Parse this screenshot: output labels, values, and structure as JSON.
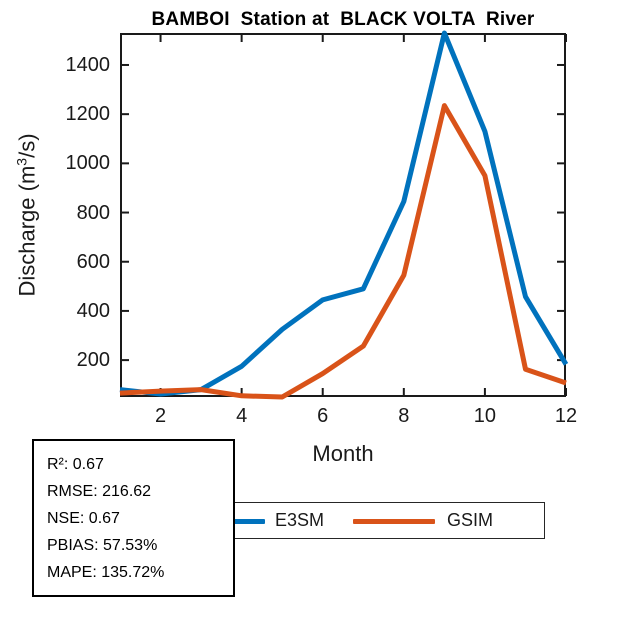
{
  "figure": {
    "title": "BAMBOI  Station at  BLACK VOLTA  River"
  },
  "axes": {
    "xlabel": "Month",
    "ylabel_pre": "Discharge (m",
    "ylabel_sup": "3",
    "ylabel_post": "/s)"
  },
  "chart_data": {
    "type": "line",
    "title": "BAMBOI  Station at  BLACK VOLTA  River",
    "xlabel": "Month",
    "ylabel": "Discharge (m³/s)",
    "x": [
      1,
      2,
      3,
      4,
      5,
      6,
      7,
      8,
      9,
      10,
      11,
      12
    ],
    "series": [
      {
        "name": "E3SM",
        "color": "#0072BD",
        "values": [
          80,
          62,
          80,
          175,
          325,
          445,
          490,
          845,
          1530,
          1130,
          458,
          183
        ]
      },
      {
        "name": "GSIM",
        "color": "#D95319",
        "values": [
          66,
          74,
          80,
          55,
          50,
          145,
          257,
          545,
          1235,
          950,
          163,
          107
        ]
      }
    ],
    "xlim": [
      1,
      12
    ],
    "ylim": [
      50,
      1530
    ],
    "x_ticks": [
      2,
      4,
      6,
      8,
      10,
      12
    ],
    "y_ticks": [
      200,
      400,
      600,
      800,
      1000,
      1200,
      1400
    ],
    "grid": false,
    "legend_position": "below-axis",
    "axis_color": "#1a1a1a",
    "line_width": 5
  },
  "legend": {
    "items": [
      {
        "label": "E3SM",
        "color": "#0072BD"
      },
      {
        "label": "GSIM",
        "color": "#D95319"
      }
    ]
  },
  "stats_box": {
    "lines": [
      "R²: 0.67",
      "RMSE: 216.62",
      "NSE: 0.67",
      "PBIAS: 57.53%",
      "MAPE: 135.72%"
    ]
  }
}
